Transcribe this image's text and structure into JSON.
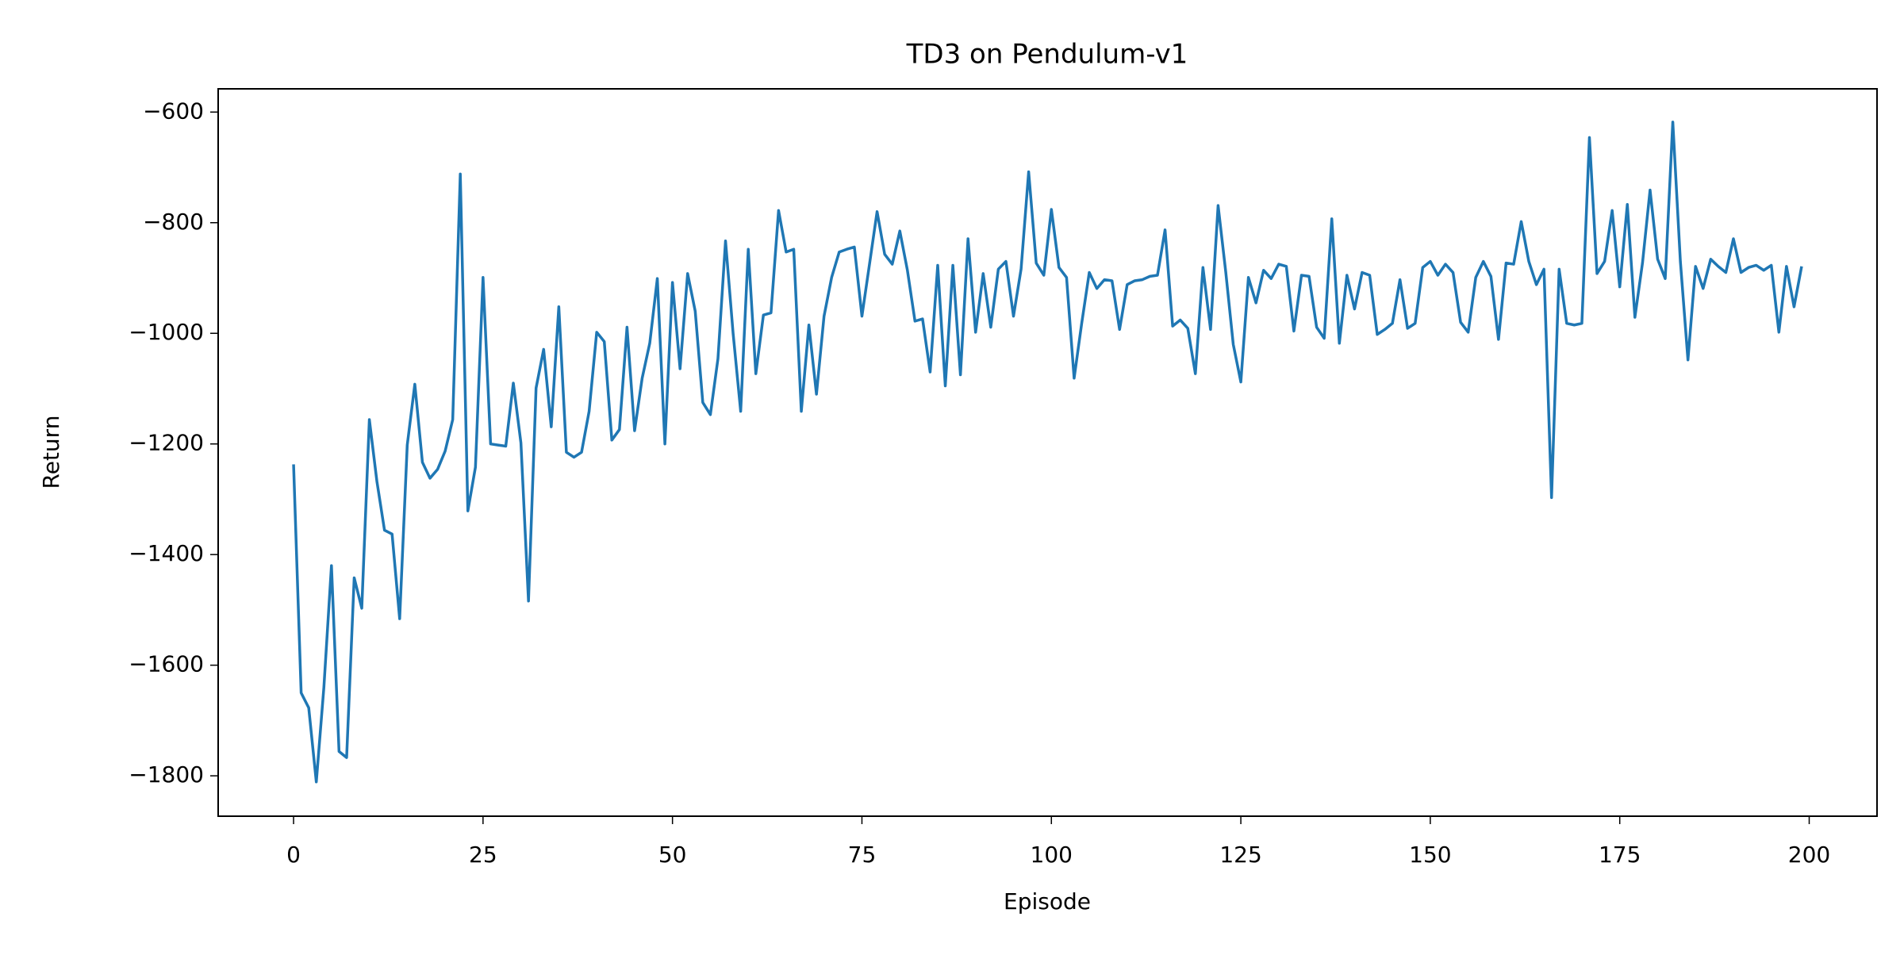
{
  "chart_data": {
    "type": "line",
    "title": "TD3 on Pendulum-v1",
    "x_label": "Episode",
    "y_label": "Return",
    "x": [
      0,
      1,
      2,
      3,
      4,
      5,
      6,
      7,
      8,
      9,
      10,
      11,
      12,
      13,
      14,
      15,
      16,
      17,
      18,
      19,
      20,
      21,
      22,
      23,
      24,
      25,
      26,
      27,
      28,
      29,
      30,
      31,
      32,
      33,
      34,
      35,
      36,
      37,
      38,
      39,
      40,
      41,
      42,
      43,
      44,
      45,
      46,
      47,
      48,
      49,
      50,
      51,
      52,
      53,
      54,
      55,
      56,
      57,
      58,
      59,
      60,
      61,
      62,
      63,
      64,
      65,
      66,
      67,
      68,
      69,
      70,
      71,
      72,
      73,
      74,
      75,
      76,
      77,
      78,
      79,
      80,
      81,
      82,
      83,
      84,
      85,
      86,
      87,
      88,
      89,
      90,
      91,
      92,
      93,
      94,
      95,
      96,
      97,
      98,
      99,
      100,
      101,
      102,
      103,
      104,
      105,
      106,
      107,
      108,
      109,
      110,
      111,
      112,
      113,
      114,
      115,
      116,
      117,
      118,
      119,
      120,
      121,
      122,
      123,
      124,
      125,
      126,
      127,
      128,
      129,
      130,
      131,
      132,
      133,
      134,
      135,
      136,
      137,
      138,
      139,
      140,
      141,
      142,
      143,
      144,
      145,
      146,
      147,
      148,
      149,
      150,
      151,
      152,
      153,
      154,
      155,
      156,
      157,
      158,
      159,
      160,
      161,
      162,
      163,
      164,
      165,
      166,
      167,
      168,
      169,
      170,
      171,
      172,
      173,
      174,
      175,
      176,
      177,
      178,
      179,
      180,
      181,
      182,
      183,
      184,
      185,
      186,
      187,
      188,
      189,
      190,
      191,
      192,
      193,
      194,
      195,
      196,
      197,
      198,
      199
    ],
    "series": [
      {
        "name": "Return",
        "color": "#1f77b4",
        "values": [
          -1237,
          -1650,
          -1677,
          -1811,
          -1640,
          -1420,
          -1756,
          -1767,
          -1442,
          -1497,
          -1156,
          -1268,
          -1356,
          -1363,
          -1516,
          -1202,
          -1092,
          -1233,
          -1262,
          -1246,
          -1213,
          -1156,
          -712,
          -1321,
          -1242,
          -899,
          -1200,
          -1202,
          -1204,
          -1090,
          -1198,
          -1484,
          -1099,
          -1029,
          -1169,
          -952,
          -1215,
          -1224,
          -1215,
          -1141,
          -998,
          -1015,
          -1193,
          -1174,
          -989,
          -1176,
          -1081,
          -1018,
          -901,
          -1200,
          -908,
          -1064,
          -892,
          -960,
          -1125,
          -1147,
          -1046,
          -833,
          -1000,
          -1141,
          -848,
          -1073,
          -967,
          -963,
          -778,
          -853,
          -848,
          -1141,
          -985,
          -1110,
          -969,
          -899,
          -853,
          -848,
          -844,
          -969,
          -875,
          -780,
          -857,
          -875,
          -815,
          -886,
          -978,
          -974,
          -1070,
          -877,
          -1095,
          -877,
          -1075,
          -829,
          -998,
          -892,
          -989,
          -884,
          -870,
          -969,
          -884,
          -708,
          -873,
          -895,
          -776,
          -881,
          -899,
          -1081,
          -982,
          -890,
          -919,
          -903,
          -905,
          -993,
          -912,
          -905,
          -903,
          -897,
          -895,
          -813,
          -987,
          -976,
          -991,
          -1073,
          -881,
          -993,
          -769,
          -888,
          -1020,
          -1088,
          -899,
          -945,
          -886,
          -901,
          -875,
          -879,
          -996,
          -895,
          -897,
          -989,
          -1009,
          -793,
          -1018,
          -895,
          -956,
          -890,
          -895,
          -1002,
          -993,
          -982,
          -903,
          -991,
          -982,
          -881,
          -870,
          -895,
          -875,
          -890,
          -980,
          -998,
          -899,
          -870,
          -897,
          -1011,
          -873,
          -875,
          -798,
          -870,
          -912,
          -884,
          -1297,
          -884,
          -982,
          -985,
          -982,
          -646,
          -892,
          -870,
          -778,
          -916,
          -767,
          -971,
          -873,
          -741,
          -866,
          -901,
          -618,
          -870,
          -1048,
          -879,
          -919,
          -866,
          -879,
          -890,
          -829,
          -890,
          -881,
          -877,
          -886,
          -877,
          -998,
          -879,
          -952,
          -879
        ]
      }
    ],
    "xlim": [
      -9.95,
      208.95
    ],
    "xticks": [
      0,
      25,
      50,
      75,
      100,
      125,
      150,
      175,
      200
    ],
    "ylim": [
      -1873,
      -558
    ],
    "yticks": [
      {
        "value": -1800,
        "label": "−1800"
      },
      {
        "value": -1600,
        "label": "−1600"
      },
      {
        "value": -1400,
        "label": "−1400"
      },
      {
        "value": -1200,
        "label": "−1200"
      },
      {
        "value": -1000,
        "label": "−1000"
      },
      {
        "value": -800,
        "label": "−800"
      },
      {
        "value": -600,
        "label": "−600"
      }
    ],
    "grid": false
  }
}
